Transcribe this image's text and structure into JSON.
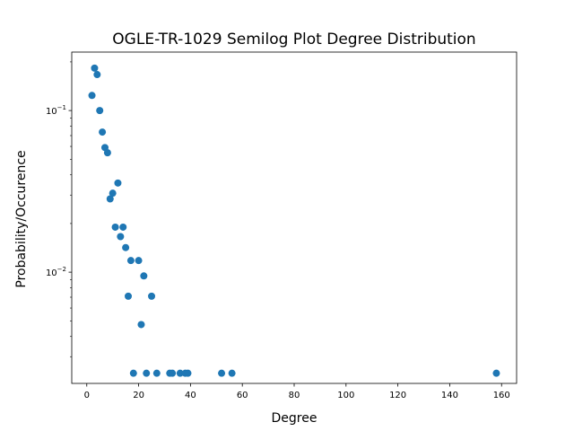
{
  "chart_data": {
    "type": "scatter",
    "title": "OGLE-TR-1029 Semilog Plot Degree Distribution",
    "xlabel": "Degree",
    "ylabel": "Probability/Occurence",
    "xscale": "linear",
    "yscale": "log",
    "xlim": [
      -5.8,
      165.8
    ],
    "ylim": [
      0.00205,
      0.23
    ],
    "grid": false,
    "marker_color": "#1f77b4",
    "x_ticks": [
      0,
      20,
      40,
      60,
      80,
      100,
      120,
      140,
      160
    ],
    "x_tick_labels": [
      "0",
      "20",
      "40",
      "60",
      "80",
      "100",
      "120",
      "140",
      "160"
    ],
    "y_ticks": [
      0.01,
      0.1
    ],
    "y_tick_labels": [
      {
        "base": "10",
        "exp": "−2"
      },
      {
        "base": "10",
        "exp": "−1"
      }
    ],
    "points": [
      {
        "x": 2,
        "y": 0.124
      },
      {
        "x": 3,
        "y": 0.183
      },
      {
        "x": 4,
        "y": 0.167
      },
      {
        "x": 5,
        "y": 0.1
      },
      {
        "x": 6,
        "y": 0.0736
      },
      {
        "x": 7,
        "y": 0.059
      },
      {
        "x": 8,
        "y": 0.0548
      },
      {
        "x": 9,
        "y": 0.0284
      },
      {
        "x": 10,
        "y": 0.0308
      },
      {
        "x": 11,
        "y": 0.019
      },
      {
        "x": 12,
        "y": 0.0356
      },
      {
        "x": 13,
        "y": 0.0166
      },
      {
        "x": 14,
        "y": 0.019
      },
      {
        "x": 15,
        "y": 0.0142
      },
      {
        "x": 16,
        "y": 0.0071
      },
      {
        "x": 17,
        "y": 0.0118
      },
      {
        "x": 18,
        "y": 0.00237
      },
      {
        "x": 20,
        "y": 0.0118
      },
      {
        "x": 21,
        "y": 0.00474
      },
      {
        "x": 22,
        "y": 0.00948
      },
      {
        "x": 23,
        "y": 0.00237
      },
      {
        "x": 25,
        "y": 0.0071
      },
      {
        "x": 27,
        "y": 0.00237
      },
      {
        "x": 32,
        "y": 0.00237
      },
      {
        "x": 33,
        "y": 0.00237
      },
      {
        "x": 36,
        "y": 0.00237
      },
      {
        "x": 38,
        "y": 0.00237
      },
      {
        "x": 39,
        "y": 0.00237
      },
      {
        "x": 52,
        "y": 0.00237
      },
      {
        "x": 56,
        "y": 0.00237
      },
      {
        "x": 158,
        "y": 0.00237
      }
    ]
  }
}
